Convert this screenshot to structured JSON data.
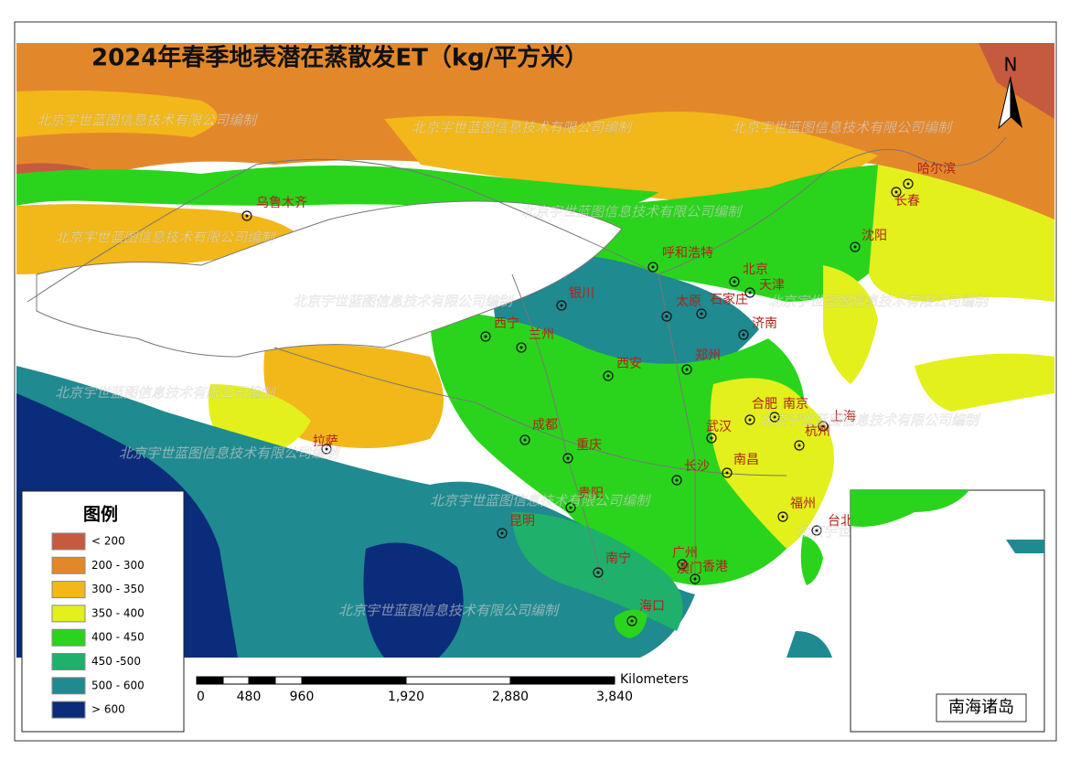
{
  "title": "2024年春季地表潜在蒸散发ET（kg/平方米）",
  "north": "N",
  "watermark": "北京宇世蓝图信息技术有限公司编制",
  "legend": {
    "title": "图例",
    "items": [
      {
        "label": "< 200",
        "color": "#c65a3f"
      },
      {
        "label": "200 - 300",
        "color": "#e3882a"
      },
      {
        "label": "300 - 350",
        "color": "#f2b719"
      },
      {
        "label": "350 - 400",
        "color": "#e3f01c"
      },
      {
        "label": "400 - 450",
        "color": "#2ad41c"
      },
      {
        "label": "450 -500",
        "color": "#1fb06c"
      },
      {
        "label": "500 - 600",
        "color": "#1f8a90"
      },
      {
        "label": "> 600",
        "color": "#0b2c7a"
      }
    ]
  },
  "cities": [
    "乌鲁木齐",
    "哈尔滨",
    "长春",
    "沈阳",
    "呼和浩特",
    "北京",
    "天津",
    "银川",
    "太原",
    "石家庄",
    "西宁",
    "兰州",
    "济南",
    "郑州",
    "西安",
    "合肥",
    "南京",
    "上海",
    "杭州",
    "武汉",
    "成都",
    "重庆",
    "南昌",
    "长沙",
    "拉萨",
    "贵阳",
    "福州",
    "台北",
    "昆明",
    "南宁",
    "广州",
    "澳门",
    "香港",
    "海口"
  ],
  "scale_bar": {
    "unit": "Kilometers",
    "labels": [
      "0",
      "480",
      "960",
      "1,920",
      "2,880",
      "3,840"
    ]
  },
  "inset": {
    "label": "南海诸岛"
  }
}
